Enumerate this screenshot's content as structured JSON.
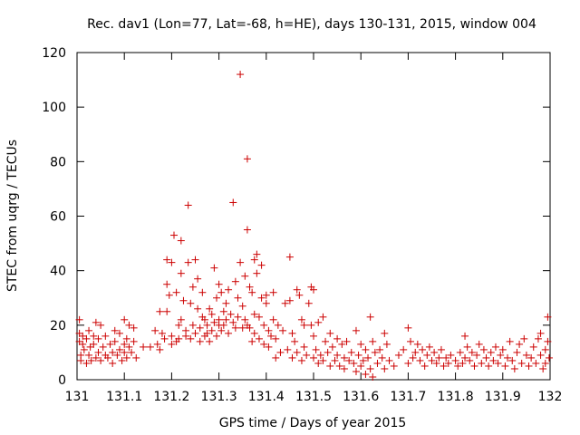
{
  "chart_data": {
    "type": "scatter",
    "title": "Rec. dav1 (Lon=77, Lat=-68, h=HE), days 130-131, 2015, window 004",
    "xlabel": "GPS time / Days of year 2015",
    "ylabel": "STEC from uqrg / TECUs",
    "xlim": [
      131,
      132
    ],
    "ylim": [
      0,
      120
    ],
    "x_ticks": [
      "131",
      "131.1",
      "131.2",
      "131.3",
      "131.4",
      "131.5",
      "131.6",
      "131.7",
      "131.8",
      "131.9",
      "132"
    ],
    "y_ticks": [
      "0",
      "20",
      "40",
      "60",
      "80",
      "100",
      "120"
    ],
    "marker": "+",
    "marker_color": "#cc0000",
    "grid": false,
    "points": [
      [
        131.005,
        22
      ],
      [
        131.005,
        17
      ],
      [
        131.005,
        14
      ],
      [
        131.008,
        9
      ],
      [
        131.008,
        7
      ],
      [
        131.012,
        16
      ],
      [
        131.012,
        13
      ],
      [
        131.015,
        11
      ],
      [
        131.02,
        6
      ],
      [
        131.02,
        15
      ],
      [
        131.025,
        18
      ],
      [
        131.025,
        9
      ],
      [
        131.028,
        12
      ],
      [
        131.03,
        7
      ],
      [
        131.035,
        16
      ],
      [
        131.035,
        13
      ],
      [
        131.04,
        21
      ],
      [
        131.04,
        8
      ],
      [
        131.045,
        10
      ],
      [
        131.045,
        15
      ],
      [
        131.05,
        20
      ],
      [
        131.05,
        7
      ],
      [
        131.055,
        12
      ],
      [
        131.06,
        9
      ],
      [
        131.06,
        16
      ],
      [
        131.065,
        8
      ],
      [
        131.07,
        13
      ],
      [
        131.075,
        10
      ],
      [
        131.075,
        6
      ],
      [
        131.08,
        18
      ],
      [
        131.08,
        14
      ],
      [
        131.085,
        9
      ],
      [
        131.09,
        17
      ],
      [
        131.09,
        11
      ],
      [
        131.095,
        7
      ],
      [
        131.1,
        22
      ],
      [
        131.1,
        13
      ],
      [
        131.1,
        10
      ],
      [
        131.105,
        15
      ],
      [
        131.105,
        8
      ],
      [
        131.11,
        20
      ],
      [
        131.11,
        12
      ],
      [
        131.115,
        10
      ],
      [
        131.12,
        19
      ],
      [
        131.12,
        14
      ],
      [
        131.125,
        8
      ],
      [
        131.14,
        12
      ],
      [
        131.155,
        12
      ],
      [
        131.165,
        18
      ],
      [
        131.17,
        13
      ],
      [
        131.175,
        11
      ],
      [
        131.175,
        25
      ],
      [
        131.18,
        17
      ],
      [
        131.185,
        15
      ],
      [
        131.19,
        35
      ],
      [
        131.19,
        44
      ],
      [
        131.19,
        25
      ],
      [
        131.195,
        31
      ],
      [
        131.2,
        13
      ],
      [
        131.2,
        16
      ],
      [
        131.2,
        43
      ],
      [
        131.205,
        53
      ],
      [
        131.21,
        14
      ],
      [
        131.21,
        32
      ],
      [
        131.215,
        15
      ],
      [
        131.215,
        20
      ],
      [
        131.22,
        22
      ],
      [
        131.22,
        51
      ],
      [
        131.22,
        39
      ],
      [
        131.225,
        29
      ],
      [
        131.23,
        18
      ],
      [
        131.23,
        16
      ],
      [
        131.235,
        64
      ],
      [
        131.235,
        43
      ],
      [
        131.24,
        28
      ],
      [
        131.24,
        15
      ],
      [
        131.245,
        20
      ],
      [
        131.245,
        34
      ],
      [
        131.25,
        44
      ],
      [
        131.25,
        17
      ],
      [
        131.255,
        37
      ],
      [
        131.255,
        26
      ],
      [
        131.26,
        14
      ],
      [
        131.26,
        19
      ],
      [
        131.265,
        32
      ],
      [
        131.265,
        23
      ],
      [
        131.27,
        16
      ],
      [
        131.27,
        22
      ],
      [
        131.275,
        20
      ],
      [
        131.275,
        17
      ],
      [
        131.28,
        26
      ],
      [
        131.28,
        14
      ],
      [
        131.285,
        24
      ],
      [
        131.285,
        18
      ],
      [
        131.29,
        41
      ],
      [
        131.29,
        21
      ],
      [
        131.295,
        16
      ],
      [
        131.295,
        30
      ],
      [
        131.3,
        22
      ],
      [
        131.3,
        20
      ],
      [
        131.3,
        35
      ],
      [
        131.305,
        32
      ],
      [
        131.305,
        18
      ],
      [
        131.31,
        25
      ],
      [
        131.31,
        20
      ],
      [
        131.315,
        28
      ],
      [
        131.315,
        22
      ],
      [
        131.32,
        33
      ],
      [
        131.32,
        17
      ],
      [
        131.325,
        24
      ],
      [
        131.33,
        21
      ],
      [
        131.33,
        65
      ],
      [
        131.335,
        36
      ],
      [
        131.335,
        19
      ],
      [
        131.34,
        30
      ],
      [
        131.34,
        23
      ],
      [
        131.345,
        112
      ],
      [
        131.345,
        43
      ],
      [
        131.35,
        27
      ],
      [
        131.35,
        19
      ],
      [
        131.355,
        22
      ],
      [
        131.355,
        38
      ],
      [
        131.36,
        20
      ],
      [
        131.36,
        81
      ],
      [
        131.36,
        55
      ],
      [
        131.365,
        34
      ],
      [
        131.365,
        19
      ],
      [
        131.37,
        32
      ],
      [
        131.37,
        14
      ],
      [
        131.375,
        44
      ],
      [
        131.375,
        24
      ],
      [
        131.375,
        17
      ],
      [
        131.38,
        46
      ],
      [
        131.38,
        39
      ],
      [
        131.385,
        23
      ],
      [
        131.385,
        15
      ],
      [
        131.39,
        30
      ],
      [
        131.39,
        42
      ],
      [
        131.395,
        20
      ],
      [
        131.395,
        13
      ],
      [
        131.4,
        28
      ],
      [
        131.4,
        31
      ],
      [
        131.405,
        18
      ],
      [
        131.405,
        12
      ],
      [
        131.41,
        16
      ],
      [
        131.415,
        32
      ],
      [
        131.415,
        22
      ],
      [
        131.42,
        8
      ],
      [
        131.42,
        15
      ],
      [
        131.425,
        20
      ],
      [
        131.43,
        10
      ],
      [
        131.435,
        18
      ],
      [
        131.44,
        28
      ],
      [
        131.445,
        11
      ],
      [
        131.45,
        29
      ],
      [
        131.45,
        45
      ],
      [
        131.455,
        8
      ],
      [
        131.455,
        17
      ],
      [
        131.46,
        14
      ],
      [
        131.465,
        33
      ],
      [
        131.465,
        10
      ],
      [
        131.47,
        31
      ],
      [
        131.475,
        22
      ],
      [
        131.475,
        7
      ],
      [
        131.48,
        20
      ],
      [
        131.48,
        12
      ],
      [
        131.485,
        9
      ],
      [
        131.49,
        28
      ],
      [
        131.495,
        20
      ],
      [
        131.495,
        34
      ],
      [
        131.5,
        33
      ],
      [
        131.5,
        16
      ],
      [
        131.5,
        8
      ],
      [
        131.505,
        11
      ],
      [
        131.51,
        21
      ],
      [
        131.51,
        6
      ],
      [
        131.515,
        9
      ],
      [
        131.52,
        23
      ],
      [
        131.52,
        7
      ],
      [
        131.525,
        14
      ],
      [
        131.53,
        10
      ],
      [
        131.535,
        17
      ],
      [
        131.535,
        5
      ],
      [
        131.54,
        12
      ],
      [
        131.545,
        7
      ],
      [
        131.55,
        9
      ],
      [
        131.55,
        15
      ],
      [
        131.555,
        5
      ],
      [
        131.56,
        13
      ],
      [
        131.565,
        8
      ],
      [
        131.565,
        4
      ],
      [
        131.57,
        14
      ],
      [
        131.575,
        7
      ],
      [
        131.58,
        10
      ],
      [
        131.585,
        6
      ],
      [
        131.59,
        3
      ],
      [
        131.59,
        18
      ],
      [
        131.595,
        9
      ],
      [
        131.6,
        5
      ],
      [
        131.6,
        13
      ],
      [
        131.605,
        7
      ],
      [
        131.61,
        2
      ],
      [
        131.61,
        11
      ],
      [
        131.615,
        8
      ],
      [
        131.62,
        23
      ],
      [
        131.62,
        4
      ],
      [
        131.625,
        1
      ],
      [
        131.625,
        14
      ],
      [
        131.63,
        10
      ],
      [
        131.635,
        6
      ],
      [
        131.64,
        11
      ],
      [
        131.645,
        8
      ],
      [
        131.65,
        17
      ],
      [
        131.65,
        4
      ],
      [
        131.655,
        13
      ],
      [
        131.66,
        7
      ],
      [
        131.67,
        5
      ],
      [
        131.68,
        9
      ],
      [
        131.69,
        11
      ],
      [
        131.7,
        6
      ],
      [
        131.7,
        19
      ],
      [
        131.705,
        14
      ],
      [
        131.71,
        8
      ],
      [
        131.715,
        10
      ],
      [
        131.72,
        13
      ],
      [
        131.725,
        7
      ],
      [
        131.73,
        11
      ],
      [
        131.735,
        5
      ],
      [
        131.74,
        9
      ],
      [
        131.745,
        12
      ],
      [
        131.75,
        7
      ],
      [
        131.755,
        10
      ],
      [
        131.76,
        6
      ],
      [
        131.765,
        8
      ],
      [
        131.77,
        11
      ],
      [
        131.775,
        5
      ],
      [
        131.78,
        8
      ],
      [
        131.785,
        6
      ],
      [
        131.79,
        9
      ],
      [
        131.8,
        7
      ],
      [
        131.805,
        5
      ],
      [
        131.81,
        10
      ],
      [
        131.815,
        6
      ],
      [
        131.82,
        16
      ],
      [
        131.82,
        8
      ],
      [
        131.825,
        12
      ],
      [
        131.83,
        7
      ],
      [
        131.835,
        10
      ],
      [
        131.84,
        5
      ],
      [
        131.845,
        9
      ],
      [
        131.85,
        13
      ],
      [
        131.855,
        6
      ],
      [
        131.86,
        11
      ],
      [
        131.865,
        8
      ],
      [
        131.87,
        5
      ],
      [
        131.875,
        10
      ],
      [
        131.88,
        7
      ],
      [
        131.885,
        12
      ],
      [
        131.89,
        6
      ],
      [
        131.895,
        9
      ],
      [
        131.9,
        11
      ],
      [
        131.905,
        5
      ],
      [
        131.91,
        8
      ],
      [
        131.915,
        14
      ],
      [
        131.92,
        7
      ],
      [
        131.925,
        4
      ],
      [
        131.93,
        10
      ],
      [
        131.935,
        13
      ],
      [
        131.94,
        6
      ],
      [
        131.945,
        15
      ],
      [
        131.95,
        9
      ],
      [
        131.955,
        5
      ],
      [
        131.96,
        8
      ],
      [
        131.965,
        12
      ],
      [
        131.97,
        6
      ],
      [
        131.975,
        15
      ],
      [
        131.98,
        17
      ],
      [
        131.98,
        9
      ],
      [
        131.985,
        4
      ],
      [
        131.99,
        11
      ],
      [
        131.99,
        6
      ],
      [
        131.995,
        23
      ],
      [
        131.995,
        14
      ],
      [
        131.998,
        8
      ]
    ]
  }
}
